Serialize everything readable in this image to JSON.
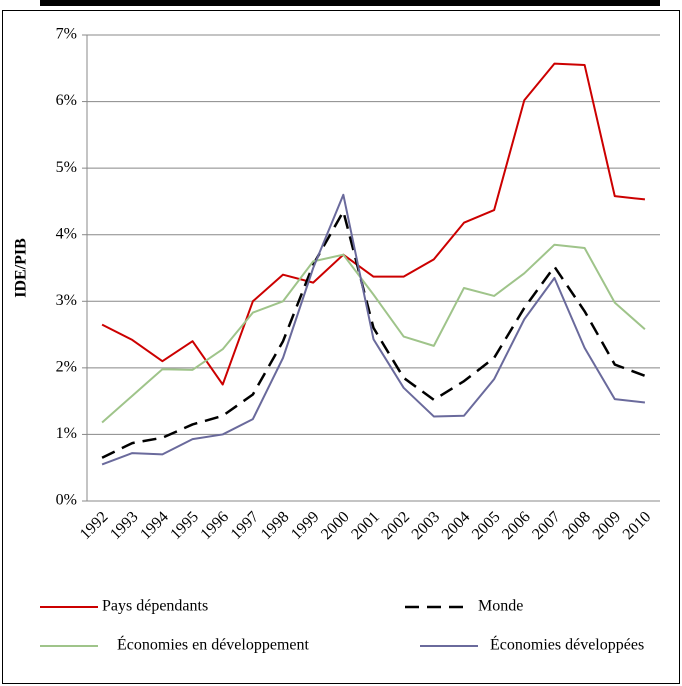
{
  "chart_data": {
    "type": "line",
    "ylabel": "IDE/PIB",
    "categories": [
      "1992",
      "1993",
      "1994",
      "1995",
      "1996",
      "1997",
      "1998",
      "1999",
      "2000",
      "2001",
      "2002",
      "2003",
      "2004",
      "2005",
      "2006",
      "2007",
      "2008",
      "2009",
      "2010"
    ],
    "series": [
      {
        "name": "Pays dépendants",
        "color": "#cc0000",
        "dash": false,
        "values": [
          2.65,
          2.42,
          2.1,
          2.4,
          1.75,
          3.0,
          3.4,
          3.28,
          3.7,
          3.37,
          3.37,
          3.63,
          4.18,
          4.37,
          6.02,
          6.57,
          6.55,
          4.58,
          4.53
        ]
      },
      {
        "name": "Monde",
        "color": "#000000",
        "dash": true,
        "values": [
          0.65,
          0.87,
          0.95,
          1.15,
          1.28,
          1.6,
          2.4,
          3.55,
          4.35,
          2.6,
          1.85,
          1.52,
          1.8,
          2.15,
          2.9,
          3.52,
          2.85,
          2.05,
          1.88
        ]
      },
      {
        "name": "Économies en développement",
        "color": "#9fc48a",
        "dash": false,
        "values": [
          1.18,
          1.58,
          1.98,
          1.97,
          2.28,
          2.83,
          3.0,
          3.6,
          3.7,
          3.1,
          2.47,
          2.33,
          3.2,
          3.08,
          3.42,
          3.85,
          3.8,
          2.98,
          2.58
        ]
      },
      {
        "name": "Économies développées",
        "color": "#6a6a9c",
        "dash": false,
        "values": [
          0.55,
          0.72,
          0.7,
          0.93,
          1.0,
          1.23,
          2.15,
          3.5,
          4.6,
          2.43,
          1.7,
          1.27,
          1.28,
          1.83,
          2.73,
          3.35,
          2.3,
          1.53,
          1.48
        ]
      }
    ],
    "ylim": [
      0,
      7
    ],
    "yticks": [
      {
        "value": 0,
        "label": "0%"
      },
      {
        "value": 1,
        "label": "1%"
      },
      {
        "value": 2,
        "label": "2%"
      },
      {
        "value": 3,
        "label": "3%"
      },
      {
        "value": 4,
        "label": "4%"
      },
      {
        "value": 5,
        "label": "5%"
      },
      {
        "value": 6,
        "label": "6%"
      },
      {
        "value": 7,
        "label": "7%"
      }
    ],
    "grid": true,
    "legend": "bottom"
  }
}
